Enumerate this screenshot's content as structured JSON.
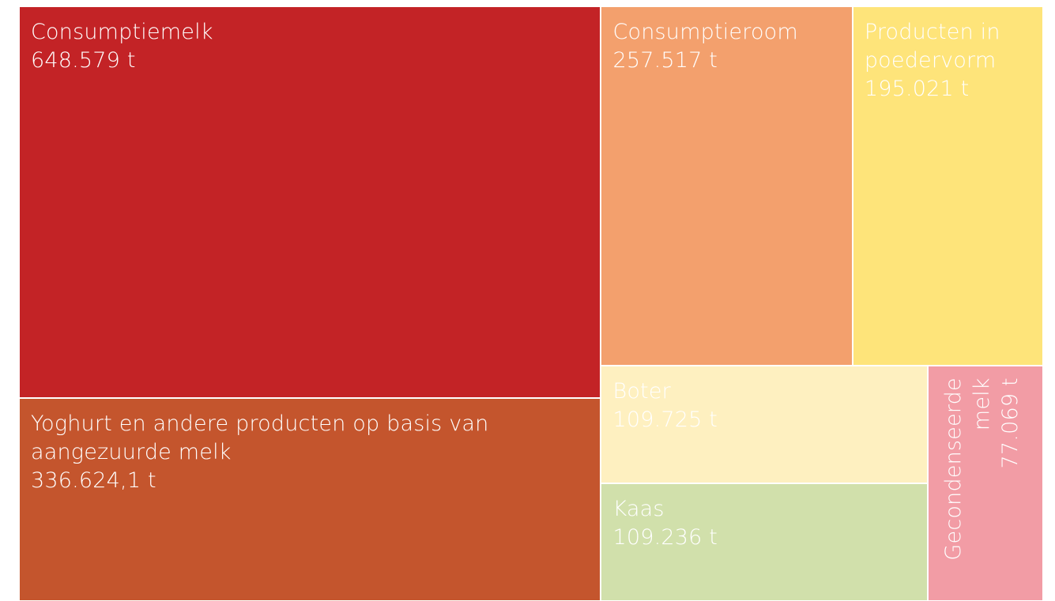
{
  "chart_data": {
    "type": "treemap",
    "categories": [
      "Consumptiemelk",
      "Yoghurt en andere producten op basis van aangezuurde melk",
      "Consumptieroom",
      "Producten in poedervorm",
      "Boter",
      "Kaas",
      "Gecondenseerde melk"
    ],
    "values": [
      648579,
      336624.1,
      257517,
      195021,
      109725,
      109236,
      77069
    ],
    "value_labels": [
      "648.579 t",
      "336.624,1 t",
      "257.517 t",
      "195.021 t",
      "109.725 t",
      "109.236 t",
      "77.069 t"
    ],
    "colors": [
      "#c32326",
      "#c4552d",
      "#f3a06d",
      "#fee47a",
      "#fef0c0",
      "#d1e0ab",
      "#f29ca5"
    ]
  }
}
